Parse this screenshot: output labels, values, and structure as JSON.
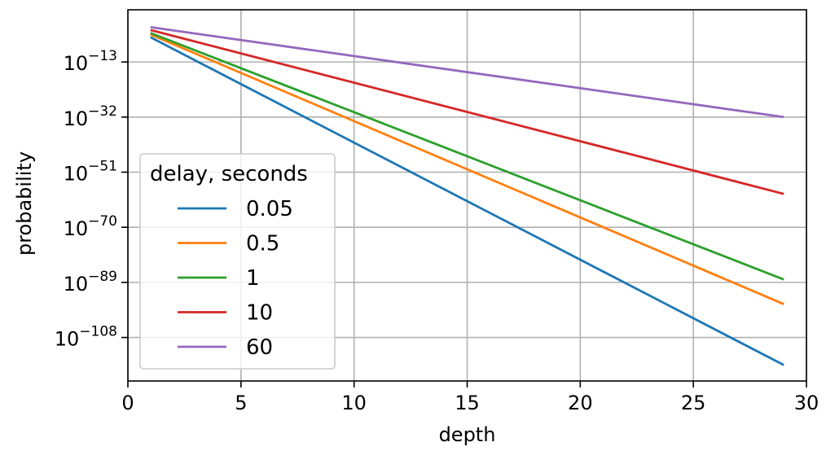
{
  "chart_data": {
    "type": "line",
    "title": "",
    "xlabel": "depth",
    "ylabel": "probability",
    "y_scale": "log10",
    "xlim": [
      0,
      30
    ],
    "ylim_log10": [
      -123,
      5
    ],
    "x_ticks": [
      0,
      5,
      10,
      15,
      20,
      25,
      30
    ],
    "x_tick_labels": [
      "0",
      "5",
      "10",
      "15",
      "20",
      "25",
      "30"
    ],
    "y_ticks_log10": [
      -13,
      -32,
      -51,
      -70,
      -89,
      -108
    ],
    "y_tick_labels": [
      {
        "base": "10",
        "exp": "−13"
      },
      {
        "base": "10",
        "exp": "−32"
      },
      {
        "base": "10",
        "exp": "−51"
      },
      {
        "base": "10",
        "exp": "−70"
      },
      {
        "base": "10",
        "exp": "−89"
      },
      {
        "base": "10",
        "exp": "−108"
      }
    ],
    "grid": true,
    "legend": {
      "title": "delay, seconds",
      "placement": "lower-left"
    },
    "series": [
      {
        "name": "0.05",
        "color": "#1f77b4",
        "x": [
          1,
          29
        ],
        "log10_y": [
          -4.5,
          -117.5
        ]
      },
      {
        "name": "0.5",
        "color": "#ff7f0e",
        "x": [
          1,
          29
        ],
        "log10_y": [
          -3.5,
          -96.5
        ]
      },
      {
        "name": "1",
        "color": "#2ca02c",
        "x": [
          1,
          29
        ],
        "log10_y": [
          -3.0,
          -88.0
        ]
      },
      {
        "name": "10",
        "color": "#d62728",
        "x": [
          1,
          29
        ],
        "log10_y": [
          -2.0,
          -58.5
        ]
      },
      {
        "name": "60",
        "color": "#9467bd",
        "x": [
          1,
          29
        ],
        "log10_y": [
          -1.0,
          -32.0
        ]
      }
    ]
  }
}
